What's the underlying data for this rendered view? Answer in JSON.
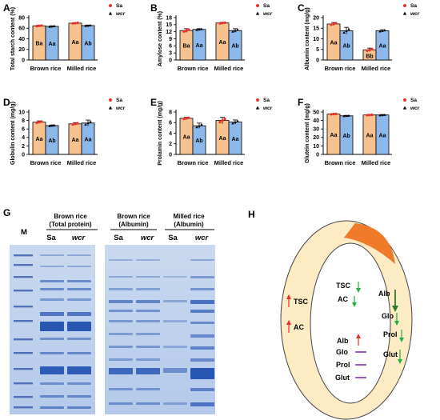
{
  "colors": {
    "sa": "#F7C28E",
    "wcr": "#8DB8EC",
    "sa_dot": "#E8302A",
    "wcr_dot": "#000000",
    "up": "#E8302A",
    "down": "#20B040",
    "flat": "#7A2A9A",
    "seed_coat": "#FDEBC4",
    "embryo": "#EE7A2A"
  },
  "chart_data": [
    {
      "panel": "A",
      "type": "bar",
      "ylabel": "Total starch content (%)",
      "ylim": [
        0,
        80
      ],
      "yticks": [
        0,
        20,
        40,
        60,
        80
      ],
      "categories": [
        "Brown rice",
        "Milled rice"
      ],
      "series": [
        {
          "name": "Sa",
          "values": [
            64.5,
            69.5
          ],
          "errors": [
            1.0,
            1.0
          ],
          "labels": [
            "Ba",
            "Aa"
          ]
        },
        {
          "name": "wcr",
          "values": [
            63.5,
            65.0
          ],
          "errors": [
            1.0,
            1.0
          ],
          "labels": [
            "Aa",
            "Ab"
          ]
        }
      ]
    },
    {
      "panel": "B",
      "type": "bar",
      "ylabel": "Amylose content (%)",
      "ylim": [
        0,
        18
      ],
      "yticks": [
        0,
        3,
        6,
        9,
        12,
        15,
        18
      ],
      "categories": [
        "Brown rice",
        "Milled rice"
      ],
      "series": [
        {
          "name": "Sa",
          "values": [
            12.5,
            15.7
          ],
          "errors": [
            0.8,
            0.3
          ],
          "labels": [
            "Ba",
            "Aa"
          ]
        },
        {
          "name": "wcr",
          "values": [
            13.0,
            12.5
          ],
          "errors": [
            0.3,
            0.8
          ],
          "labels": [
            "Aa",
            "Ab"
          ]
        }
      ]
    },
    {
      "panel": "C",
      "type": "bar",
      "ylabel": "Albumin content (mg/g)",
      "ylim": [
        0,
        20
      ],
      "yticks": [
        0,
        5,
        10,
        15,
        20
      ],
      "categories": [
        "Brown rice",
        "Milled rice"
      ],
      "series": [
        {
          "name": "Sa",
          "values": [
            17.0,
            4.8
          ],
          "errors": [
            0.7,
            0.8
          ],
          "labels": [
            "Aa",
            "Bb"
          ]
        },
        {
          "name": "wcr",
          "values": [
            13.8,
            13.8
          ],
          "errors": [
            1.6,
            0.5
          ],
          "labels": [
            "Ab",
            "Aa"
          ]
        }
      ]
    },
    {
      "panel": "D",
      "type": "bar",
      "ylabel": "Globulin content (mg/g)",
      "ylim": [
        0,
        10
      ],
      "yticks": [
        0,
        2,
        4,
        6,
        8,
        10
      ],
      "categories": [
        "Brown rice",
        "Milled rice"
      ],
      "series": [
        {
          "name": "Sa",
          "values": [
            7.6,
            7.2
          ],
          "errors": [
            0.3,
            0.3
          ],
          "labels": [
            "Aa",
            "Aa"
          ]
        },
        {
          "name": "wcr",
          "values": [
            6.8,
            7.4
          ],
          "errors": [
            0.15,
            0.7
          ],
          "labels": [
            "Ab",
            "Aa"
          ]
        }
      ]
    },
    {
      "panel": "E",
      "type": "bar",
      "ylabel": "Prolamin content (mg/g)",
      "ylim": [
        0,
        8
      ],
      "yticks": [
        0,
        2,
        4,
        6,
        8
      ],
      "categories": [
        "Brown rice",
        "Milled rice"
      ],
      "series": [
        {
          "name": "Sa",
          "values": [
            6.8,
            6.4
          ],
          "errors": [
            0.2,
            0.6
          ],
          "labels": [
            "Aa",
            "Aa"
          ]
        },
        {
          "name": "wcr",
          "values": [
            5.4,
            6.1
          ],
          "errors": [
            0.5,
            0.4
          ],
          "labels": [
            "Ab",
            "Aa"
          ]
        }
      ]
    },
    {
      "panel": "F",
      "type": "bar",
      "ylabel": "Glutein content (mg/g)",
      "ylim": [
        0,
        50
      ],
      "yticks": [
        0,
        10,
        20,
        30,
        40,
        50
      ],
      "categories": [
        "Brown rice",
        "Milled rice"
      ],
      "series": [
        {
          "name": "Sa",
          "values": [
            47.5,
            46.5
          ],
          "errors": [
            0.5,
            0.5
          ],
          "labels": [
            "Aa",
            "Aa"
          ]
        },
        {
          "name": "wcr",
          "values": [
            45.5,
            46.5
          ],
          "errors": [
            0.5,
            0.5
          ],
          "labels": [
            "Ab",
            "Aa"
          ]
        }
      ]
    }
  ],
  "legend": {
    "sa": "Sa",
    "wcr": "wcr"
  },
  "gel": {
    "panel": "G",
    "marker": "M",
    "group1": {
      "title_line1": "Brown rice",
      "title_line2": "(Total protein)",
      "lanes": [
        "Sa",
        "wcr"
      ]
    },
    "group2": {
      "title_line1": "Brown rice",
      "title_line2": "(Albumin)",
      "lanes": [
        "Sa",
        "wcr"
      ]
    },
    "group3": {
      "title_line1": "Milled rice",
      "title_line2": "(Albumin)",
      "lanes": [
        "Sa",
        "wcr"
      ]
    }
  },
  "diagram": {
    "panel": "H",
    "outer": [
      "TSC",
      "AC"
    ],
    "inner_top": [
      "TSC",
      "AC"
    ],
    "inner_bottom": [
      "Alb",
      "Glo",
      "Prol",
      "Glut"
    ],
    "right": [
      "Alb",
      "Glo",
      "Prol",
      "Glut"
    ]
  }
}
